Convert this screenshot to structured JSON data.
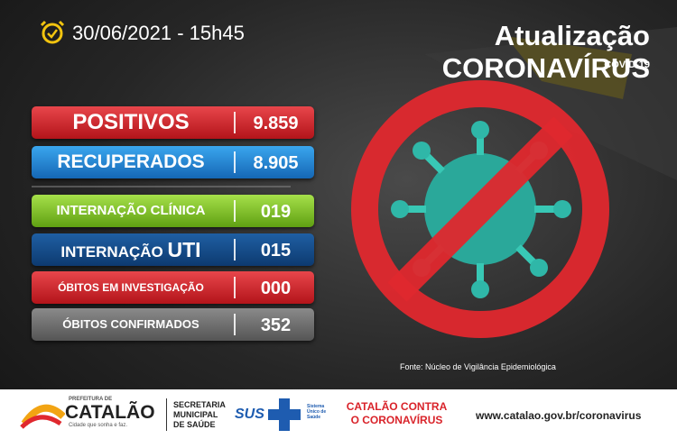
{
  "header": {
    "datetime": "30/06/2021 - 15h45",
    "title": "Atualização CORONAVÍRUS",
    "subtitle": "COVID-19"
  },
  "stats": [
    {
      "label": "POSITIVOS",
      "value": "9.859"
    },
    {
      "label": "RECUPERADOS",
      "value": "8.905"
    },
    {
      "label": "INTERNAÇÃO CLÍNICA",
      "value": "019"
    },
    {
      "label": "INTERNAÇÃO",
      "label_emphasis": "UTI",
      "value": "015"
    },
    {
      "label": "ÓBITOS EM INVESTIGAÇÃO",
      "value": "000"
    },
    {
      "label": "ÓBITOS CONFIRMADOS",
      "value": "352"
    }
  ],
  "source": "Fonte: Núcleo de Vigilância Epidemiológica",
  "footer": {
    "city_prefix": "PREFEITURA DE",
    "city_name": "CATALÃO",
    "city_slogan": "Cidade que sonha e faz.",
    "secretariat": [
      "SECRETARIA",
      "MUNICIPAL",
      "DE SAÚDE"
    ],
    "sus": "SUS",
    "sus_caption": "Sistema Único de Saúde",
    "campaign": [
      "CATALÃO CONTRA",
      "O CORONAVÍRUS"
    ],
    "website": "www.catalao.gov.br/coronavirus"
  }
}
